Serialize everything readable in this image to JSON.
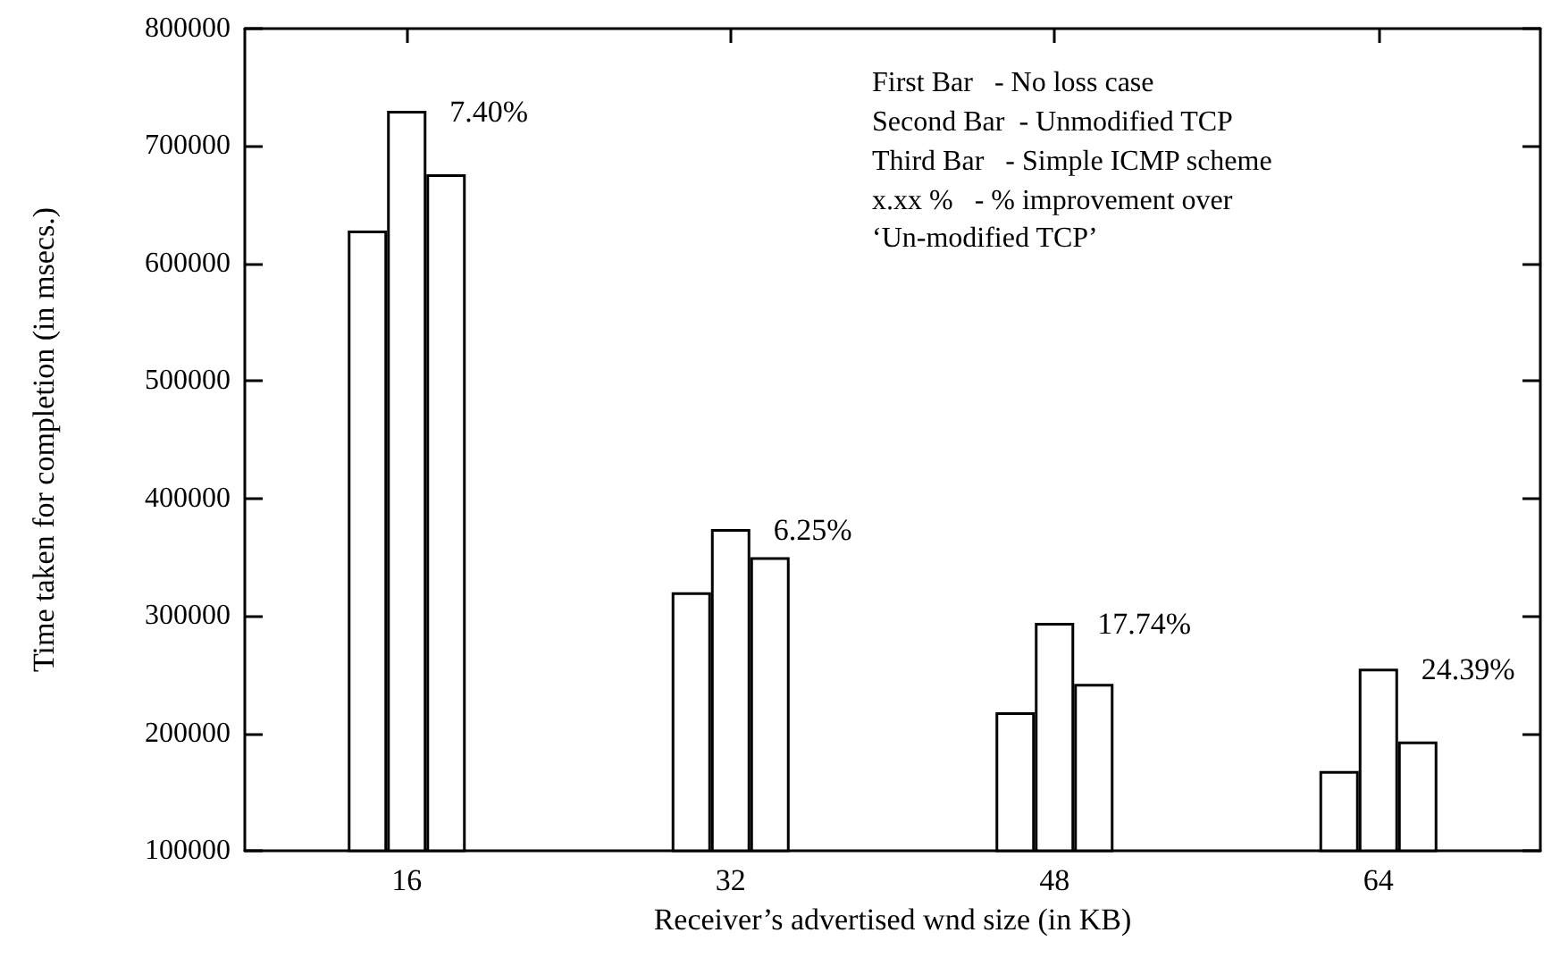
{
  "chart_data": {
    "type": "bar",
    "xlabel": "Receiver’s advertised wnd size (in KB)",
    "ylabel": "Time taken for completion (in msecs.)",
    "categories": [
      "16",
      "32",
      "48",
      "64"
    ],
    "series": [
      {
        "color": "#ffffff",
        "values": [
          628000,
          320000,
          218000,
          168000
        ]
      },
      {
        "color": "#ffffff",
        "values": [
          730000,
          374000,
          294000,
          255000
        ]
      },
      {
        "color": "#ffffff",
        "values": [
          676000,
          350000,
          242000,
          193000
        ]
      }
    ],
    "ylim": [
      100000,
      800000
    ],
    "yticks": [
      100000,
      200000,
      300000,
      400000,
      500000,
      600000,
      700000,
      800000
    ],
    "annotations": [
      "First Bar   - No loss case",
      "Second Bar  - Unmodified TCP",
      "Third Bar   - Simple ICMP scheme",
      "x.xx %   - % improvement over ‘Un-modified TCP’",
      {
        "text": "7.40%",
        "x": "16",
        "y": 730000
      },
      {
        "text": "6.25%",
        "x": "32",
        "y": 374000
      },
      {
        "text": "17.74%",
        "x": "48",
        "y": 294000
      },
      {
        "text": "24.39%",
        "x": "64",
        "y": 255000
      }
    ],
    "grid": false
  }
}
